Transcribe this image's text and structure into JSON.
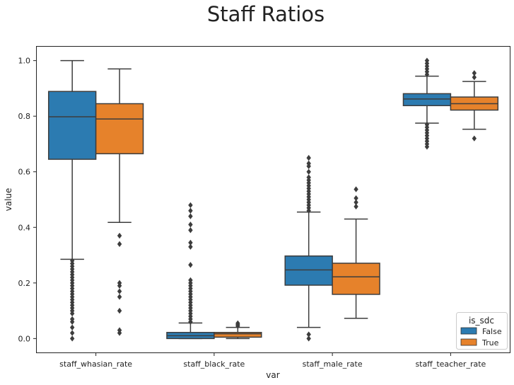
{
  "chart_data": {
    "type": "box",
    "title": "Staff Ratios",
    "xlabel": "var",
    "ylabel": "value",
    "ylim": [
      -0.05,
      1.05
    ],
    "yticks": [
      "0.0",
      "0.2",
      "0.4",
      "0.6",
      "0.8",
      "1.0"
    ],
    "categories": [
      "staff_whasian_rate",
      "staff_black_rate",
      "staff_male_rate",
      "staff_teacher_rate"
    ],
    "legend": {
      "title": "is_sdc",
      "position": "lower-right"
    },
    "series": [
      {
        "name": "False",
        "color": "#2c7bb1",
        "boxes": [
          {
            "whislo": 0.285,
            "q1": 0.645,
            "med": 0.798,
            "q3": 0.889,
            "whishi": 1.0,
            "fliers": [
              0.0,
              0.02,
              0.04,
              0.06,
              0.07,
              0.09,
              0.1,
              0.11,
              0.12,
              0.13,
              0.14,
              0.15,
              0.16,
              0.17,
              0.18,
              0.19,
              0.2,
              0.21,
              0.22,
              0.23,
              0.24,
              0.25,
              0.26,
              0.27,
              0.28
            ]
          },
          {
            "whislo": 0.0,
            "q1": 0.0,
            "med": 0.01,
            "q3": 0.022,
            "whishi": 0.056,
            "fliers": [
              0.06,
              0.07,
              0.08,
              0.09,
              0.1,
              0.11,
              0.12,
              0.13,
              0.14,
              0.15,
              0.16,
              0.17,
              0.18,
              0.19,
              0.2,
              0.21,
              0.265,
              0.33,
              0.345,
              0.39,
              0.41,
              0.44,
              0.46,
              0.48
            ]
          },
          {
            "whislo": 0.04,
            "q1": 0.192,
            "med": 0.247,
            "q3": 0.297,
            "whishi": 0.455,
            "fliers": [
              0.0,
              0.015,
              0.46,
              0.47,
              0.48,
              0.49,
              0.5,
              0.51,
              0.52,
              0.53,
              0.54,
              0.55,
              0.56,
              0.57,
              0.58,
              0.6,
              0.62,
              0.63,
              0.65
            ]
          },
          {
            "whislo": 0.775,
            "q1": 0.838,
            "med": 0.862,
            "q3": 0.881,
            "whishi": 0.944,
            "fliers": [
              0.69,
              0.7,
              0.71,
              0.72,
              0.73,
              0.74,
              0.75,
              0.76,
              0.77,
              0.95,
              0.96,
              0.97,
              0.98,
              0.99,
              1.0
            ]
          }
        ]
      },
      {
        "name": "True",
        "color": "#e6822b",
        "boxes": [
          {
            "whislo": 0.418,
            "q1": 0.665,
            "med": 0.79,
            "q3": 0.845,
            "whishi": 0.97,
            "fliers": [
              0.02,
              0.03,
              0.1,
              0.15,
              0.17,
              0.19,
              0.2,
              0.34,
              0.37
            ]
          },
          {
            "whislo": 0.0,
            "q1": 0.005,
            "med": 0.017,
            "q3": 0.022,
            "whishi": 0.04,
            "fliers": [
              0.045,
              0.05,
              0.055
            ]
          },
          {
            "whislo": 0.073,
            "q1": 0.159,
            "med": 0.222,
            "q3": 0.271,
            "whishi": 0.43,
            "fliers": [
              0.475,
              0.49,
              0.505,
              0.537
            ]
          },
          {
            "whislo": 0.753,
            "q1": 0.822,
            "med": 0.845,
            "q3": 0.869,
            "whishi": 0.925,
            "fliers": [
              0.72,
              0.94,
              0.955
            ]
          }
        ]
      }
    ]
  }
}
